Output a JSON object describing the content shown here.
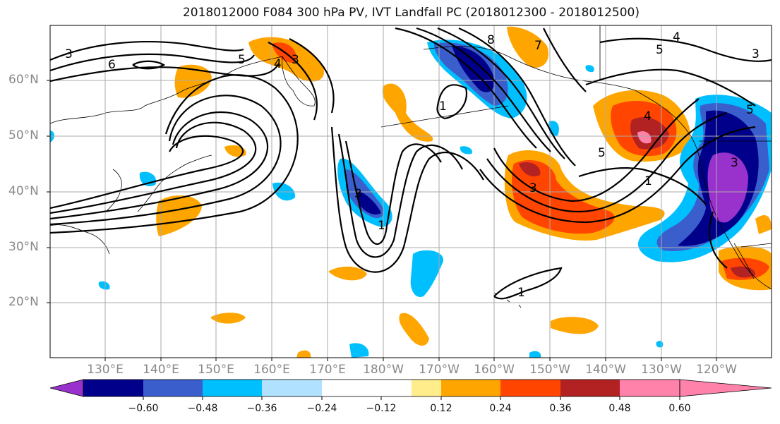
{
  "title": "2018012000 F084 300 hPa PV, IVT Landfall PC (2018012300 - 2018012500)",
  "lat_labels": [
    "60°N",
    "50°N",
    "40°N",
    "30°N",
    "20°N"
  ],
  "lon_labels": [
    "130°E",
    "140°E",
    "150°E",
    "160°E",
    "170°E",
    "180°W",
    "170°W",
    "160°W",
    "150°W",
    "140°W",
    "130°W",
    "120°W"
  ],
  "colorbar": {
    "colors": [
      "#9932cc",
      "#00008b",
      "#3a5fcd",
      "#00bfff",
      "#b0e2ff",
      "#ffffff",
      "#ffffff",
      "#ffec8b",
      "#ffa500",
      "#ff4500",
      "#b22222",
      "#ff82ab"
    ],
    "ticks": [
      "−0.60",
      "−0.48",
      "−0.36",
      "−0.24",
      "−0.12",
      "0.12",
      "0.24",
      "0.36",
      "0.48",
      "0.60"
    ]
  },
  "contour_labels": [
    "3",
    "6",
    "5",
    "4",
    "3",
    "3",
    "1",
    "8",
    "7",
    "1",
    "5",
    "4",
    "3",
    "3",
    "5",
    "1",
    "1",
    "5",
    "4",
    "3"
  ]
}
